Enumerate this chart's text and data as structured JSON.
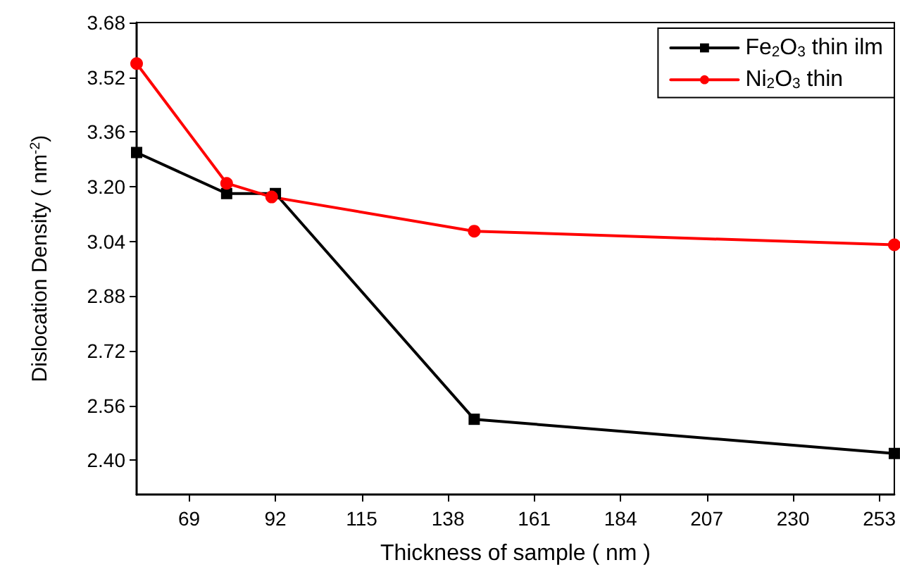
{
  "chart_data": {
    "type": "line",
    "xlabel": "Thickness of sample ( nm )",
    "ylabel": "Dislocation Density ( nm$^{-2}$)",
    "xlim": [
      55,
      257
    ],
    "xticks": [
      69,
      92,
      115,
      138,
      161,
      184,
      207,
      230,
      253
    ],
    "ylim": [
      2.3,
      3.68
    ],
    "yticks": [
      {
        "value": 2.4,
        "label": "2.40"
      },
      2.56,
      2.72,
      2.88,
      3.04,
      {
        "value": 3.2,
        "label": "3.20"
      },
      3.36,
      3.52,
      3.68
    ],
    "grid": false,
    "legend": "top right",
    "line_style": "solid",
    "series": [
      {
        "name": "Fe$_{2}$O$_{3}$ thin ilm",
        "color": "#000000",
        "marker": "square",
        "x": [
          55,
          79,
          92,
          145,
          257
        ],
        "values": [
          3.3,
          3.18,
          3.18,
          2.52,
          2.42
        ]
      },
      {
        "name": "Ni$_{2}$O$_{3}$ thin",
        "color": "#ff0000",
        "marker": "circle",
        "x": [
          55,
          79,
          91,
          145,
          257
        ],
        "values": [
          3.56,
          3.21,
          3.17,
          3.07,
          3.03
        ]
      }
    ]
  }
}
